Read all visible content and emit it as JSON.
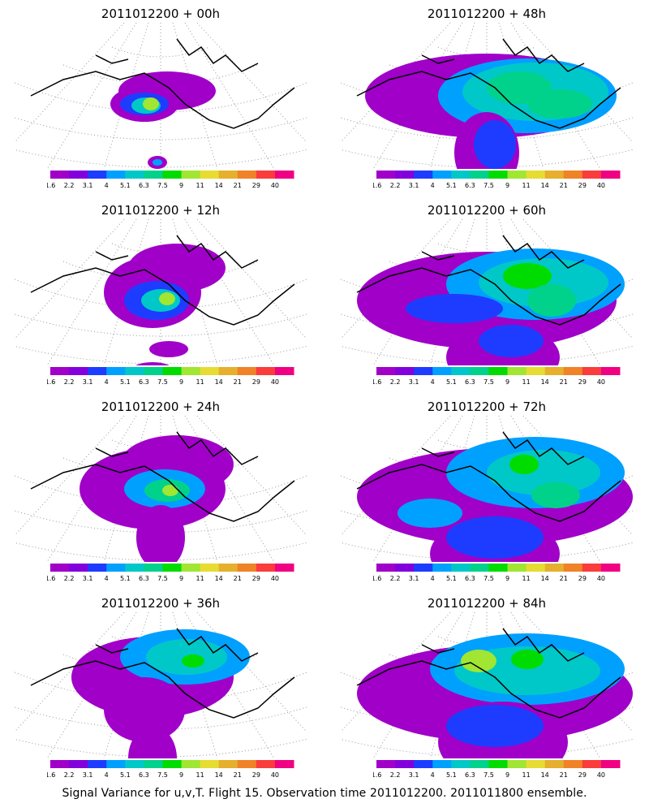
{
  "caption": "Signal Variance for u,v,T. Flight 15. Observation time 2011012200. 2011011800 ensemble.",
  "colorbar": {
    "labels": [
      "1.6",
      "2.2",
      "3.1",
      "4",
      "5.1",
      "6.3",
      "7.5",
      "9",
      "11",
      "14",
      "21",
      "29",
      "40"
    ],
    "colors": [
      "#a000c8",
      "#8200dc",
      "#1e3cff",
      "#00a0ff",
      "#00c8c8",
      "#00d28c",
      "#00dc00",
      "#a0e632",
      "#e6dc32",
      "#e6af2d",
      "#f08228",
      "#fa3c3c",
      "#f00082"
    ]
  },
  "chart_data": [
    {
      "type": "heatmap",
      "title": "2011012200 + 00h",
      "colorbar_labels": [
        "1.6",
        "2.2",
        "3.1",
        "4",
        "5.1",
        "6.3",
        "7.5",
        "9",
        "11",
        "14",
        "21",
        "29",
        "40"
      ],
      "max_level": "11"
    },
    {
      "type": "heatmap",
      "title": "2011012200 + 48h",
      "colorbar_labels": [
        "1.6",
        "2.2",
        "3.1",
        "4",
        "5.1",
        "6.3",
        "7.5",
        "9",
        "11",
        "14",
        "21",
        "29",
        "40"
      ],
      "max_level": "7.5"
    },
    {
      "type": "heatmap",
      "title": "2011012200 + 12h",
      "colorbar_labels": [
        "1.6",
        "2.2",
        "3.1",
        "4",
        "5.1",
        "6.3",
        "7.5",
        "9",
        "11",
        "14",
        "21",
        "29",
        "40"
      ],
      "max_level": "9"
    },
    {
      "type": "heatmap",
      "title": "2011012200 + 60h",
      "colorbar_labels": [
        "1.6",
        "2.2",
        "3.1",
        "4",
        "5.1",
        "6.3",
        "7.5",
        "9",
        "11",
        "14",
        "21",
        "29",
        "40"
      ],
      "max_level": "7.5"
    },
    {
      "type": "heatmap",
      "title": "2011012200 + 24h",
      "colorbar_labels": [
        "1.6",
        "2.2",
        "3.1",
        "4",
        "5.1",
        "6.3",
        "7.5",
        "9",
        "11",
        "14",
        "21",
        "29",
        "40"
      ],
      "max_level": "9"
    },
    {
      "type": "heatmap",
      "title": "2011012200 + 72h",
      "colorbar_labels": [
        "1.6",
        "2.2",
        "3.1",
        "4",
        "5.1",
        "6.3",
        "7.5",
        "9",
        "11",
        "14",
        "21",
        "29",
        "40"
      ],
      "max_level": "7.5"
    },
    {
      "type": "heatmap",
      "title": "2011012200 + 36h",
      "colorbar_labels": [
        "1.6",
        "2.2",
        "3.1",
        "4",
        "5.1",
        "6.3",
        "7.5",
        "9",
        "11",
        "14",
        "21",
        "29",
        "40"
      ],
      "max_level": "7.5"
    },
    {
      "type": "heatmap",
      "title": "2011012200 + 84h",
      "colorbar_labels": [
        "1.6",
        "2.2",
        "3.1",
        "4",
        "5.1",
        "6.3",
        "7.5",
        "9",
        "11",
        "14",
        "21",
        "29",
        "40"
      ],
      "max_level": "9"
    }
  ]
}
